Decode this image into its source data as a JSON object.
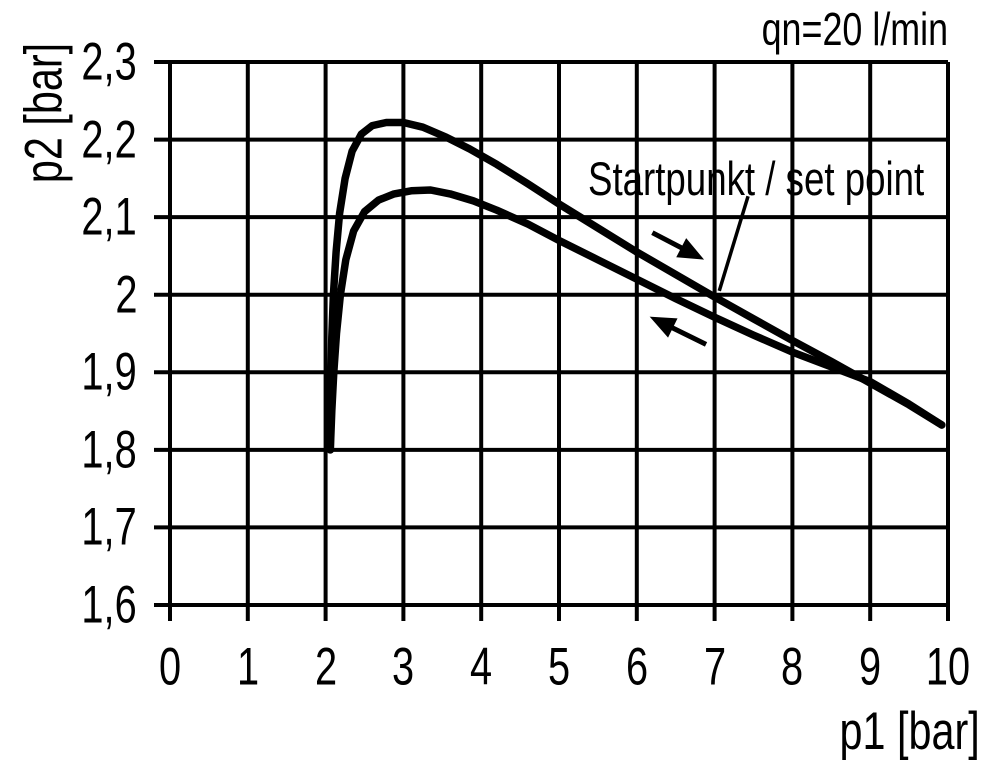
{
  "colors": {
    "ink": "#000000",
    "background": "#ffffff"
  },
  "chart_data": {
    "type": "line",
    "title": "qn=20 l/min",
    "xlabel": "p1 [bar]",
    "ylabel": "p2 [bar]",
    "xlim": [
      0,
      10
    ],
    "ylim": [
      1.6,
      2.3
    ],
    "grid": true,
    "x_ticks": [
      {
        "value": 0,
        "label": "0"
      },
      {
        "value": 1,
        "label": "1"
      },
      {
        "value": 2,
        "label": "2"
      },
      {
        "value": 3,
        "label": "3"
      },
      {
        "value": 4,
        "label": "4"
      },
      {
        "value": 5,
        "label": "5"
      },
      {
        "value": 6,
        "label": "6"
      },
      {
        "value": 7,
        "label": "7"
      },
      {
        "value": 8,
        "label": "8"
      },
      {
        "value": 9,
        "label": "9"
      },
      {
        "value": 10,
        "label": "10"
      }
    ],
    "y_ticks": [
      {
        "value": 2.3,
        "label": "2,3"
      },
      {
        "value": 2.2,
        "label": "2,2"
      },
      {
        "value": 2.1,
        "label": "2,1"
      },
      {
        "value": 2.0,
        "label": "2"
      },
      {
        "value": 1.9,
        "label": "1,9"
      },
      {
        "value": 1.8,
        "label": "1,8"
      },
      {
        "value": 1.7,
        "label": "1,7"
      },
      {
        "value": 1.6,
        "label": "1,6"
      }
    ],
    "series": [
      {
        "name": "upper-hysteresis-branch",
        "points": [
          [
            2.06,
            1.8
          ],
          [
            2.065,
            1.87
          ],
          [
            2.08,
            1.945
          ],
          [
            2.1,
            2.0
          ],
          [
            2.135,
            2.055
          ],
          [
            2.18,
            2.105
          ],
          [
            2.25,
            2.15
          ],
          [
            2.34,
            2.185
          ],
          [
            2.46,
            2.207
          ],
          [
            2.6,
            2.218
          ],
          [
            2.78,
            2.222
          ],
          [
            3.0,
            2.222
          ],
          [
            3.25,
            2.216
          ],
          [
            3.55,
            2.203
          ],
          [
            3.85,
            2.188
          ],
          [
            4.2,
            2.168
          ],
          [
            4.6,
            2.143
          ],
          [
            5.0,
            2.117
          ],
          [
            5.5,
            2.086
          ],
          [
            6.0,
            2.055
          ],
          [
            6.5,
            2.026
          ],
          [
            7.0,
            1.997
          ],
          [
            7.5,
            1.969
          ],
          [
            8.0,
            1.941
          ],
          [
            8.5,
            1.914
          ],
          [
            9.0,
            1.886
          ],
          [
            9.5,
            1.858
          ],
          [
            9.92,
            1.832
          ]
        ]
      },
      {
        "name": "lower-hysteresis-branch",
        "points": [
          [
            2.06,
            1.8
          ],
          [
            2.08,
            1.85
          ],
          [
            2.105,
            1.9
          ],
          [
            2.14,
            1.95
          ],
          [
            2.19,
            2.0
          ],
          [
            2.26,
            2.045
          ],
          [
            2.36,
            2.082
          ],
          [
            2.5,
            2.107
          ],
          [
            2.68,
            2.122
          ],
          [
            2.88,
            2.13
          ],
          [
            3.1,
            2.134
          ],
          [
            3.35,
            2.135
          ],
          [
            3.6,
            2.13
          ],
          [
            3.9,
            2.121
          ],
          [
            4.2,
            2.109
          ],
          [
            4.6,
            2.091
          ],
          [
            5.0,
            2.07
          ],
          [
            5.5,
            2.045
          ],
          [
            6.0,
            2.02
          ],
          [
            6.5,
            1.995
          ],
          [
            7.0,
            1.971
          ],
          [
            7.5,
            1.948
          ],
          [
            8.0,
            1.926
          ],
          [
            8.5,
            1.907
          ],
          [
            9.0,
            1.888
          ],
          [
            9.5,
            1.859
          ],
          [
            9.92,
            1.832
          ]
        ]
      }
    ],
    "annotations": {
      "set_point": {
        "label": "Startpunkt / set point",
        "leader_from": [
          7.43,
          2.127
        ],
        "target": [
          7.06,
          2.005
        ]
      },
      "arrows": [
        {
          "name": "forward-direction-arrow",
          "from": [
            6.2,
            2.08
          ],
          "to": [
            6.85,
            2.046
          ]
        },
        {
          "name": "return-direction-arrow",
          "from": [
            6.89,
            1.936
          ],
          "to": [
            6.18,
            1.971
          ]
        }
      ]
    }
  }
}
